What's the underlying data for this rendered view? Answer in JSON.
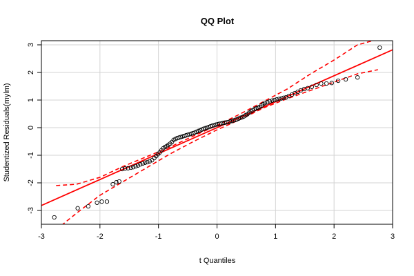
{
  "chart_data": {
    "type": "scatter",
    "title": "QQ Plot",
    "xlabel": "t Quantiles",
    "ylabel": "Studentized Residuals(mylm)",
    "xlim": [
      -3,
      3
    ],
    "ylim": [
      -3.5,
      3.15
    ],
    "xticks": [
      "-3",
      "-2",
      "-1",
      "0",
      "1",
      "2",
      "3"
    ],
    "yticks": [
      "-3",
      "-2",
      "-1",
      "0",
      "1",
      "2",
      "3"
    ],
    "grid": true,
    "colors": {
      "points": "#000000",
      "reference": "#ff0000",
      "grid": "#d3d3d3"
    },
    "reference_line": {
      "slope": 0.94,
      "intercept": 0.0
    },
    "envelope": {
      "x": [
        -2.75,
        -2.4,
        -2.0,
        -1.6,
        -1.2,
        -0.8,
        -0.4,
        0.0,
        0.4,
        0.8,
        1.2,
        1.6,
        2.0,
        2.4,
        2.75
      ],
      "lower": [
        -3.7,
        -3.1,
        -2.45,
        -1.95,
        -1.45,
        -0.95,
        -0.5,
        -0.08,
        0.3,
        0.72,
        1.05,
        1.35,
        1.65,
        1.95,
        2.1
      ],
      "upper": [
        -2.1,
        -2.05,
        -1.8,
        -1.4,
        -1.05,
        -0.7,
        -0.3,
        0.08,
        0.5,
        0.95,
        1.4,
        1.95,
        2.45,
        3.0,
        3.2
      ]
    },
    "points": {
      "x": [
        -2.78,
        -2.38,
        -2.2,
        -2.05,
        -1.97,
        -1.88,
        -1.78,
        -1.72,
        -1.67,
        -1.62,
        -1.57,
        -1.52,
        -1.47,
        -1.43,
        -1.39,
        -1.35,
        -1.31,
        -1.27,
        -1.23,
        -1.19,
        -1.15,
        -1.11,
        -1.07,
        -1.04,
        -1.01,
        -0.98,
        -0.95,
        -0.92,
        -0.89,
        -0.86,
        -0.83,
        -0.8,
        -0.77,
        -0.74,
        -0.71,
        -0.68,
        -0.65,
        -0.62,
        -0.59,
        -0.56,
        -0.53,
        -0.5,
        -0.47,
        -0.44,
        -0.41,
        -0.38,
        -0.35,
        -0.32,
        -0.29,
        -0.26,
        -0.23,
        -0.2,
        -0.17,
        -0.14,
        -0.11,
        -0.08,
        -0.05,
        -0.02,
        0.01,
        0.04,
        0.07,
        0.1,
        0.13,
        0.16,
        0.19,
        0.22,
        0.25,
        0.28,
        0.31,
        0.34,
        0.37,
        0.4,
        0.43,
        0.46,
        0.49,
        0.52,
        0.55,
        0.58,
        0.61,
        0.64,
        0.67,
        0.7,
        0.73,
        0.76,
        0.79,
        0.82,
        0.86,
        0.9,
        0.94,
        0.98,
        1.02,
        1.06,
        1.1,
        1.14,
        1.18,
        1.23,
        1.28,
        1.33,
        1.38,
        1.43,
        1.49,
        1.55,
        1.62,
        1.7,
        1.78,
        1.87,
        1.96,
        2.07,
        2.2,
        2.4,
        2.78
      ],
      "y": [
        -3.25,
        -2.92,
        -2.85,
        -2.72,
        -2.68,
        -2.68,
        -2.05,
        -1.98,
        -1.95,
        -1.5,
        -1.48,
        -1.47,
        -1.45,
        -1.43,
        -1.4,
        -1.37,
        -1.33,
        -1.3,
        -1.27,
        -1.25,
        -1.22,
        -1.18,
        -1.1,
        -1.03,
        -0.96,
        -0.9,
        -0.82,
        -0.75,
        -0.7,
        -0.67,
        -0.62,
        -0.58,
        -0.52,
        -0.44,
        -0.41,
        -0.38,
        -0.36,
        -0.34,
        -0.32,
        -0.3,
        -0.28,
        -0.26,
        -0.24,
        -0.22,
        -0.2,
        -0.18,
        -0.15,
        -0.12,
        -0.1,
        -0.07,
        -0.04,
        -0.02,
        0.0,
        0.02,
        0.05,
        0.07,
        0.09,
        0.11,
        0.12,
        0.14,
        0.15,
        0.17,
        0.18,
        0.19,
        0.2,
        0.22,
        0.24,
        0.26,
        0.28,
        0.3,
        0.33,
        0.36,
        0.38,
        0.41,
        0.45,
        0.49,
        0.54,
        0.59,
        0.63,
        0.67,
        0.7,
        0.72,
        0.75,
        0.8,
        0.85,
        0.89,
        0.92,
        0.95,
        0.98,
        1.0,
        1.02,
        1.04,
        1.06,
        1.08,
        1.1,
        1.15,
        1.2,
        1.25,
        1.3,
        1.35,
        1.4,
        1.43,
        1.48,
        1.55,
        1.6,
        1.6,
        1.62,
        1.7,
        1.75,
        1.82,
        2.9
      ]
    }
  }
}
